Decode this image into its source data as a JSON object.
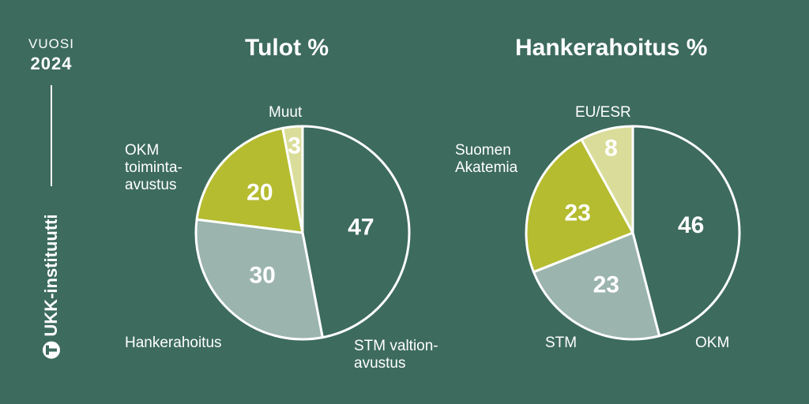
{
  "sidebar": {
    "year_label": "VUOSI",
    "year": "2024",
    "logo_text": "UKK-instituutti"
  },
  "colors": {
    "background": "#3d6b5e",
    "dark_green": "#3d6b5e",
    "olive": "#b5bc30",
    "grey_green": "#9bb4ae",
    "pale_olive": "#d9dd99",
    "white": "#ffffff"
  },
  "chart_data": [
    {
      "type": "pie",
      "title": "Tulot %",
      "slices": [
        {
          "label": "STM valtion-\navustus",
          "value": 47,
          "color": "#3d6b5e"
        },
        {
          "label": "Hankerahoitus",
          "value": 30,
          "color": "#9bb4ae"
        },
        {
          "label": "OKM\ntoiminta-\navustus",
          "value": 20,
          "color": "#b5bc30"
        },
        {
          "label": "Muut",
          "value": 3,
          "color": "#d9dd99"
        }
      ]
    },
    {
      "type": "pie",
      "title": "Hankerahoitus %",
      "slices": [
        {
          "label": "OKM",
          "value": 46,
          "color": "#3d6b5e"
        },
        {
          "label": "STM",
          "value": 23,
          "color": "#9bb4ae"
        },
        {
          "label": "Suomen\nAkatemia",
          "value": 23,
          "color": "#b5bc30"
        },
        {
          "label": "EU/ESR",
          "value": 8,
          "color": "#d9dd99"
        }
      ]
    }
  ]
}
